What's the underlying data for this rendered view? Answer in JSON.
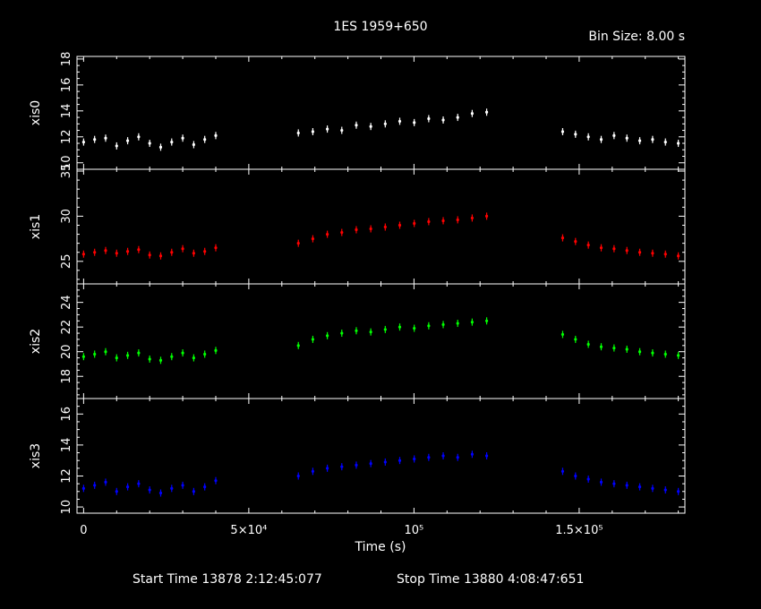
{
  "title": "1ES 1959+650",
  "bin_size": "Bin Size: 8.00 s",
  "footer": {
    "start_label": "Start Time 13878  2:12:45:077",
    "stop_label": "Stop Time 13880  4:08:47:651"
  },
  "chart_data": {
    "type": "scatter",
    "xlabel": "Time (s)",
    "xlim": [
      -2000,
      182000
    ],
    "x_ticks": [
      {
        "value": 0,
        "label": "0"
      },
      {
        "value": 50000,
        "label": "5×10⁴"
      },
      {
        "value": 100000,
        "label": "10⁵"
      },
      {
        "value": 150000,
        "label": "1.5×10⁵"
      }
    ],
    "panels": [
      {
        "name": "xis0",
        "color": "#ffffff",
        "ylim": [
          9.5,
          18.2
        ],
        "yticks": [
          10,
          12,
          14,
          16,
          18
        ],
        "segments": [
          {
            "t0": 0,
            "t1": 40000,
            "y": [
              11.6,
              11.8,
              11.9,
              11.3,
              11.7,
              12.0,
              11.5,
              11.2,
              11.6,
              11.9,
              11.4,
              11.8,
              12.1
            ]
          },
          {
            "t0": 65000,
            "t1": 122000,
            "y": [
              12.3,
              12.4,
              12.6,
              12.5,
              12.9,
              12.8,
              13.0,
              13.2,
              13.1,
              13.4,
              13.3,
              13.5,
              13.8,
              13.9
            ]
          },
          {
            "t0": 145000,
            "t1": 180000,
            "y": [
              12.4,
              12.2,
              12.0,
              11.8,
              12.1,
              11.9,
              11.7,
              11.8,
              11.6,
              11.5
            ]
          }
        ]
      },
      {
        "name": "xis1",
        "color": "#ff0000",
        "ylim": [
          22.5,
          35.2
        ],
        "yticks": [
          25,
          30,
          35
        ],
        "segments": [
          {
            "t0": 0,
            "t1": 40000,
            "y": [
              25.8,
              26.0,
              26.2,
              25.9,
              26.1,
              26.3,
              25.7,
              25.6,
              26.0,
              26.4,
              25.9,
              26.1,
              26.5
            ]
          },
          {
            "t0": 65000,
            "t1": 122000,
            "y": [
              27.0,
              27.5,
              28.0,
              28.2,
              28.5,
              28.6,
              28.8,
              29.0,
              29.2,
              29.4,
              29.5,
              29.6,
              29.8,
              30.0
            ]
          },
          {
            "t0": 145000,
            "t1": 180000,
            "y": [
              27.6,
              27.2,
              26.8,
              26.5,
              26.4,
              26.2,
              26.0,
              25.9,
              25.8,
              25.6
            ]
          }
        ]
      },
      {
        "name": "xis2",
        "color": "#00ff00",
        "ylim": [
          16.2,
          25.5
        ],
        "yticks": [
          18,
          20,
          22,
          24
        ],
        "segments": [
          {
            "t0": 0,
            "t1": 40000,
            "y": [
              19.6,
              19.8,
              20.0,
              19.5,
              19.7,
              19.9,
              19.4,
              19.3,
              19.6,
              19.9,
              19.5,
              19.8,
              20.1
            ]
          },
          {
            "t0": 65000,
            "t1": 122000,
            "y": [
              20.5,
              21.0,
              21.3,
              21.5,
              21.7,
              21.6,
              21.8,
              22.0,
              21.9,
              22.1,
              22.2,
              22.3,
              22.4,
              22.5
            ]
          },
          {
            "t0": 145000,
            "t1": 180000,
            "y": [
              21.4,
              21.0,
              20.6,
              20.4,
              20.3,
              20.2,
              20.0,
              19.9,
              19.8,
              19.7
            ]
          }
        ]
      },
      {
        "name": "xis3",
        "color": "#0000ff",
        "ylim": [
          9.6,
          17.0
        ],
        "yticks": [
          10,
          12,
          14,
          16
        ],
        "segments": [
          {
            "t0": 0,
            "t1": 40000,
            "y": [
              11.2,
              11.4,
              11.6,
              11.0,
              11.3,
              11.5,
              11.1,
              10.9,
              11.2,
              11.4,
              11.0,
              11.3,
              11.7
            ]
          },
          {
            "t0": 65000,
            "t1": 122000,
            "y": [
              12.0,
              12.3,
              12.5,
              12.6,
              12.7,
              12.8,
              12.9,
              13.0,
              13.1,
              13.2,
              13.3,
              13.2,
              13.4,
              13.3
            ]
          },
          {
            "t0": 145000,
            "t1": 180000,
            "y": [
              12.3,
              12.0,
              11.8,
              11.6,
              11.5,
              11.4,
              11.3,
              11.2,
              11.1,
              11.0
            ]
          }
        ]
      }
    ]
  }
}
